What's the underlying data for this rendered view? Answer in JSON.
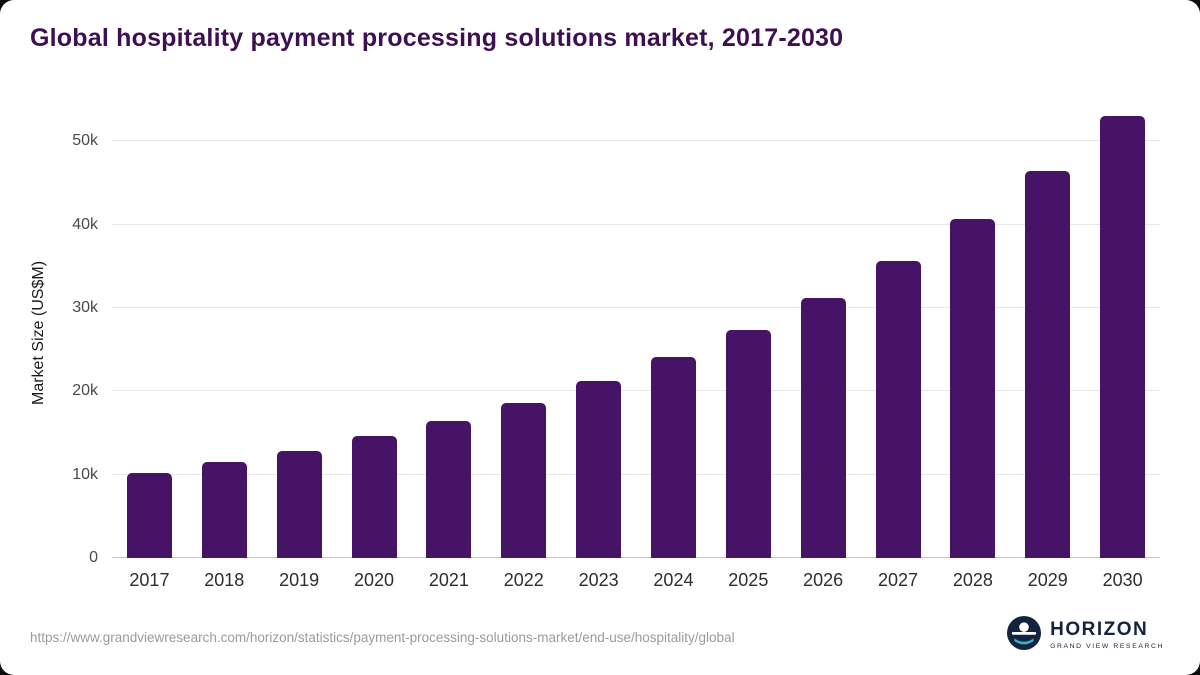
{
  "title": "Global hospitality payment processing solutions market, 2017-2030",
  "chart_data": {
    "type": "bar",
    "title": "Global hospitality payment processing solutions market, 2017-2030",
    "categories": [
      "2017",
      "2018",
      "2019",
      "2020",
      "2021",
      "2022",
      "2023",
      "2024",
      "2025",
      "2026",
      "2027",
      "2028",
      "2029",
      "2030"
    ],
    "values": [
      10200,
      11500,
      12900,
      14600,
      16500,
      18600,
      21200,
      24100,
      27400,
      31200,
      35600,
      40700,
      46400,
      53100
    ],
    "xlabel": "",
    "ylabel": "Market Size (US$M)",
    "ylim": [
      0,
      54000
    ],
    "yticks": [
      {
        "value": 0,
        "label": "0"
      },
      {
        "value": 10000,
        "label": "10k"
      },
      {
        "value": 20000,
        "label": "20k"
      },
      {
        "value": 30000,
        "label": "30k"
      },
      {
        "value": 40000,
        "label": "40k"
      },
      {
        "value": 50000,
        "label": "50k"
      }
    ],
    "grid": true,
    "legend": false,
    "bar_color": "#461367"
  },
  "footer": {
    "source_url": "https://www.grandviewresearch.com/horizon/statistics/payment-processing-solutions-market/end-use/hospitality/global",
    "logo": {
      "name": "HORIZON",
      "sub": "GRAND VIEW RESEARCH",
      "navy": "#14243f",
      "teal": "#35b6c6"
    }
  }
}
